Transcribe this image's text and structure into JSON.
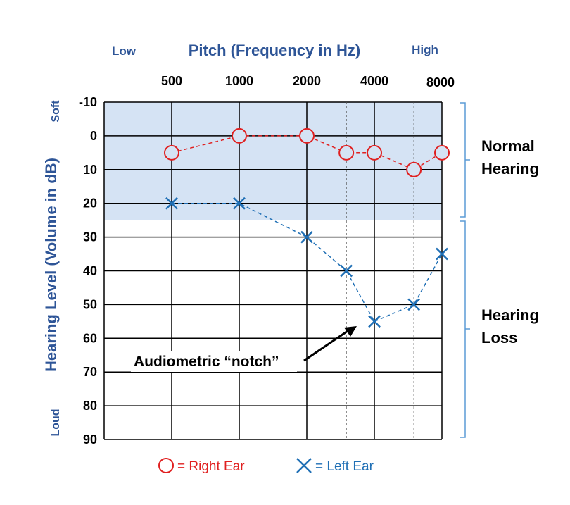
{
  "chart_data": {
    "type": "line",
    "title": "Pitch (Frequency in Hz)",
    "ylabel": "Hearing Level (Volume in dB)",
    "x_low_label": "Low",
    "x_high_label": "High",
    "y_top_label": "Soft",
    "y_bottom_label": "Loud",
    "x_ticks": [
      {
        "label": "500",
        "value": 500
      },
      {
        "label": "1000",
        "value": 1000
      },
      {
        "label": "2000",
        "value": 2000
      },
      {
        "label": "4000",
        "value": 4000
      },
      {
        "label": "8000",
        "value": 8000
      }
    ],
    "x_dashed_gridlines": [
      3000,
      6000
    ],
    "xlim": [
      250,
      8000
    ],
    "x_scale": "log",
    "ylim": [
      -10,
      90
    ],
    "y_ticks": [
      -10,
      0,
      10,
      20,
      30,
      40,
      50,
      60,
      70,
      80,
      90
    ],
    "y_inverted": true,
    "normal_band": [
      -10,
      25
    ],
    "normal_band_color": "#d5e3f4",
    "grid": true,
    "series": [
      {
        "name": "Right Ear",
        "marker": "circle",
        "color": "#e02020",
        "x": [
          500,
          1000,
          2000,
          3000,
          4000,
          6000,
          8000
        ],
        "y": [
          5,
          0,
          0,
          5,
          5,
          10,
          5
        ]
      },
      {
        "name": "Left Ear",
        "marker": "x",
        "color": "#1f6fb5",
        "x": [
          500,
          1000,
          2000,
          3000,
          4000,
          6000,
          8000
        ],
        "y": [
          20,
          20,
          30,
          40,
          55,
          50,
          35
        ]
      }
    ],
    "annotations": [
      {
        "text": "Audiometric “notch”",
        "points_to": {
          "x": 4000,
          "y": 55
        }
      }
    ],
    "brackets": [
      {
        "text_lines": [
          "Normal",
          "Hearing"
        ],
        "range": [
          -10,
          25
        ]
      },
      {
        "text_lines": [
          "Hearing",
          "Loss"
        ],
        "range": [
          25,
          90
        ]
      }
    ],
    "legend": {
      "placement": "bottom",
      "entries": [
        {
          "symbol": "circle",
          "label": "= Right Ear",
          "color": "#e02020"
        },
        {
          "symbol": "x",
          "label": "= Left Ear",
          "color": "#1f6fb5"
        }
      ]
    }
  }
}
